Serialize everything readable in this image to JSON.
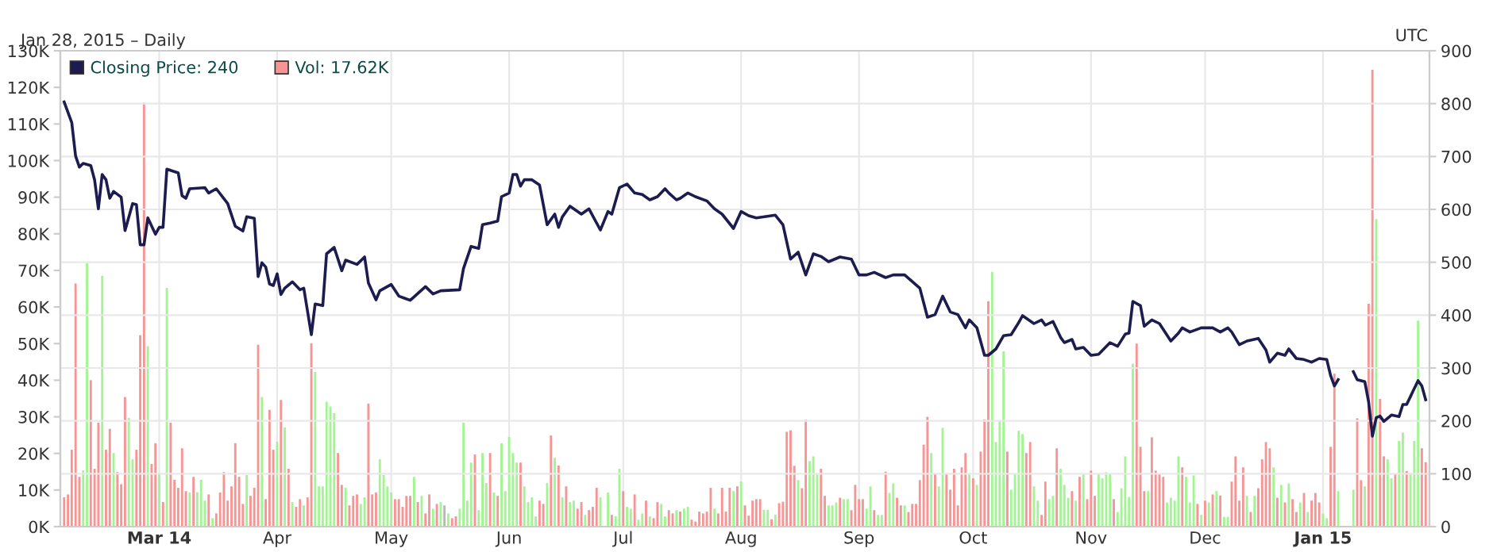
{
  "chart_data": {
    "type": "bar",
    "subtitle": "Jan 28, 2015 – Daily",
    "annotations": [
      "UTC"
    ],
    "x": [
      "2014-02-04",
      "2014-02-05",
      "2014-02-06",
      "2014-02-07",
      "2014-02-08",
      "2014-02-09",
      "2014-02-10",
      "2014-02-11",
      "2014-02-12",
      "2014-02-13",
      "2014-02-14",
      "2014-02-15",
      "2014-02-16",
      "2014-02-17",
      "2014-02-18",
      "2014-02-19",
      "2014-02-20",
      "2014-02-21",
      "2014-02-22",
      "2014-02-23",
      "2014-02-24",
      "2014-02-25",
      "2014-02-26",
      "2014-02-27",
      "2014-02-28",
      "2014-03-01",
      "2014-03-02",
      "2014-03-03",
      "2014-03-04",
      "2014-03-05",
      "2014-03-06",
      "2014-03-07",
      "2014-03-08",
      "2014-03-09",
      "2014-03-10",
      "2014-03-11",
      "2014-03-12",
      "2014-03-13",
      "2014-03-14",
      "2014-03-15",
      "2014-03-16",
      "2014-03-17",
      "2014-03-18",
      "2014-03-19",
      "2014-03-20",
      "2014-03-21",
      "2014-03-22",
      "2014-03-23",
      "2014-03-24",
      "2014-03-25",
      "2014-03-26",
      "2014-03-27",
      "2014-03-28",
      "2014-03-29",
      "2014-03-30",
      "2014-03-31",
      "2014-04-01",
      "2014-04-02",
      "2014-04-03",
      "2014-04-04",
      "2014-04-05",
      "2014-04-06",
      "2014-04-07",
      "2014-04-08",
      "2014-04-09",
      "2014-04-10",
      "2014-04-11",
      "2014-04-12",
      "2014-04-13",
      "2014-04-14",
      "2014-04-15",
      "2014-04-16",
      "2014-04-17",
      "2014-04-18",
      "2014-04-19",
      "2014-04-20",
      "2014-04-21",
      "2014-04-22",
      "2014-04-23",
      "2014-04-24",
      "2014-04-25",
      "2014-04-26",
      "2014-04-27",
      "2014-04-28",
      "2014-04-29",
      "2014-04-30",
      "2014-05-01",
      "2014-05-02",
      "2014-05-03",
      "2014-05-04",
      "2014-05-05",
      "2014-05-06",
      "2014-05-07",
      "2014-05-08",
      "2014-05-09",
      "2014-05-10",
      "2014-05-11",
      "2014-05-12",
      "2014-05-13",
      "2014-05-14",
      "2014-05-15",
      "2014-05-16",
      "2014-05-17",
      "2014-05-18",
      "2014-05-19",
      "2014-05-20",
      "2014-05-21",
      "2014-05-22",
      "2014-05-23",
      "2014-05-24",
      "2014-05-25",
      "2014-05-26",
      "2014-05-27",
      "2014-05-28",
      "2014-05-29",
      "2014-05-30",
      "2014-05-31",
      "2014-06-01",
      "2014-06-02",
      "2014-06-03",
      "2014-06-04",
      "2014-06-05",
      "2014-06-06",
      "2014-06-07",
      "2014-06-08",
      "2014-06-09",
      "2014-06-10",
      "2014-06-11",
      "2014-06-12",
      "2014-06-13",
      "2014-06-14",
      "2014-06-15",
      "2014-06-16",
      "2014-06-17",
      "2014-06-18",
      "2014-06-19",
      "2014-06-20",
      "2014-06-21",
      "2014-06-22",
      "2014-06-23",
      "2014-06-24",
      "2014-06-25",
      "2014-06-26",
      "2014-06-27",
      "2014-06-28",
      "2014-06-29",
      "2014-06-30",
      "2014-07-01",
      "2014-07-02",
      "2014-07-03",
      "2014-07-04",
      "2014-07-05",
      "2014-07-06",
      "2014-07-07",
      "2014-07-08",
      "2014-07-09",
      "2014-07-10",
      "2014-07-11",
      "2014-07-12",
      "2014-07-13",
      "2014-07-14",
      "2014-07-15",
      "2014-07-16",
      "2014-07-17",
      "2014-07-18",
      "2014-07-19",
      "2014-07-20",
      "2014-07-21",
      "2014-07-22",
      "2014-07-23",
      "2014-07-24",
      "2014-07-25",
      "2014-07-26",
      "2014-07-27",
      "2014-07-28",
      "2014-07-29",
      "2014-07-30",
      "2014-07-31",
      "2014-08-01",
      "2014-08-02",
      "2014-08-03",
      "2014-08-04",
      "2014-08-05",
      "2014-08-06",
      "2014-08-07",
      "2014-08-08",
      "2014-08-09",
      "2014-08-10",
      "2014-08-11",
      "2014-08-12",
      "2014-08-13",
      "2014-08-14",
      "2014-08-15",
      "2014-08-16",
      "2014-08-17",
      "2014-08-18",
      "2014-08-19",
      "2014-08-20",
      "2014-08-21",
      "2014-08-22",
      "2014-08-23",
      "2014-08-24",
      "2014-08-25",
      "2014-08-26",
      "2014-08-27",
      "2014-08-28",
      "2014-08-29",
      "2014-08-30",
      "2014-08-31",
      "2014-09-01",
      "2014-09-02",
      "2014-09-03",
      "2014-09-04",
      "2014-09-05",
      "2014-09-06",
      "2014-09-07",
      "2014-09-08",
      "2014-09-09",
      "2014-09-10",
      "2014-09-11",
      "2014-09-12",
      "2014-09-13",
      "2014-09-14",
      "2014-09-15",
      "2014-09-16",
      "2014-09-17",
      "2014-09-18",
      "2014-09-19",
      "2014-09-20",
      "2014-09-21",
      "2014-09-22",
      "2014-09-23",
      "2014-09-24",
      "2014-09-25",
      "2014-09-26",
      "2014-09-27",
      "2014-09-28",
      "2014-09-29",
      "2014-09-30",
      "2014-10-01",
      "2014-10-02",
      "2014-10-03",
      "2014-10-04",
      "2014-10-05",
      "2014-10-06",
      "2014-10-07",
      "2014-10-08",
      "2014-10-09",
      "2014-10-10",
      "2014-10-11",
      "2014-10-12",
      "2014-10-13",
      "2014-10-14",
      "2014-10-15",
      "2014-10-16",
      "2014-10-17",
      "2014-10-18",
      "2014-10-19",
      "2014-10-20",
      "2014-10-21",
      "2014-10-22",
      "2014-10-23",
      "2014-10-24",
      "2014-10-25",
      "2014-10-26",
      "2014-10-27",
      "2014-10-28",
      "2014-10-29",
      "2014-10-30",
      "2014-10-31",
      "2014-11-01",
      "2014-11-02",
      "2014-11-03",
      "2014-11-04",
      "2014-11-05",
      "2014-11-06",
      "2014-11-07",
      "2014-11-08",
      "2014-11-09",
      "2014-11-10",
      "2014-11-11",
      "2014-11-12",
      "2014-11-13",
      "2014-11-14",
      "2014-11-15",
      "2014-11-16",
      "2014-11-17",
      "2014-11-18",
      "2014-11-19",
      "2014-11-20",
      "2014-11-21",
      "2014-11-22",
      "2014-11-23",
      "2014-11-24",
      "2014-11-25",
      "2014-11-26",
      "2014-11-27",
      "2014-11-28",
      "2014-11-29",
      "2014-11-30",
      "2014-12-01",
      "2014-12-02",
      "2014-12-03",
      "2014-12-04",
      "2014-12-05",
      "2014-12-06",
      "2014-12-07",
      "2014-12-08",
      "2014-12-09",
      "2014-12-10",
      "2014-12-11",
      "2014-12-12",
      "2014-12-13",
      "2014-12-14",
      "2014-12-15",
      "2014-12-16",
      "2014-12-17",
      "2014-12-18",
      "2014-12-19",
      "2014-12-20",
      "2014-12-21",
      "2014-12-22",
      "2014-12-23",
      "2014-12-24",
      "2014-12-25",
      "2014-12-26",
      "2014-12-27",
      "2014-12-28",
      "2014-12-29",
      "2014-12-30",
      "2014-12-31",
      "2015-01-01",
      "2015-01-02",
      "2015-01-03",
      "2015-01-04",
      "2015-01-05",
      "2015-01-06",
      "2015-01-07",
      "2015-01-08",
      "2015-01-09",
      "2015-01-10",
      "2015-01-11",
      "2015-01-12",
      "2015-01-13",
      "2015-01-14",
      "2015-01-15",
      "2015-01-16",
      "2015-01-17",
      "2015-01-18",
      "2015-01-19",
      "2015-01-20",
      "2015-01-21",
      "2015-01-22",
      "2015-01-23",
      "2015-01-24",
      "2015-01-25",
      "2015-01-26",
      "2015-01-27",
      "2015-01-28"
    ],
    "series": [
      {
        "name": "Vol: 17.62K",
        "color": "#f79494",
        "values": [
          8,
          8.8,
          21,
          66.4,
          13.6,
          15.4,
          72,
          40,
          15.8,
          28.4,
          68.5,
          21,
          26.7,
          20.1,
          14.9,
          11.6,
          35.4,
          29.7,
          18.4,
          21,
          52.3,
          115.8,
          49.3,
          17.1,
          22.8,
          14.4,
          6.7,
          65.2,
          28.4,
          12.8,
          10.6,
          21.4,
          9.7,
          9.3,
          13.6,
          9.4,
          12.8,
          7.1,
          8.8,
          2.3,
          3.6,
          9.3,
          14.9,
          7.1,
          11,
          22.8,
          13.6,
          6.2,
          14.1,
          8.4,
          10.6,
          49.7,
          35.4,
          7.5,
          31.9,
          21,
          23.2,
          34.6,
          27.1,
          15.8,
          6.7,
          5.4,
          7.5,
          5.8,
          8,
          50.1,
          42.3,
          11,
          11,
          34.1,
          32.8,
          31,
          20.1,
          11.4,
          10.6,
          5.8,
          8.4,
          8.8,
          6.2,
          8,
          33.6,
          8.8,
          9.3,
          18.4,
          14.1,
          11,
          9.3,
          7.5,
          7.5,
          5.4,
          8.4,
          8.4,
          13.6,
          6.7,
          8.4,
          3.6,
          8.8,
          4.9,
          6.2,
          6.7,
          5.8,
          3.6,
          2.3,
          2.8,
          4.9,
          28.4,
          7.1,
          17.5,
          19.7,
          4.5,
          20.1,
          11.9,
          20.1,
          9.3,
          8.4,
          22.8,
          9.7,
          24.5,
          20.1,
          17.5,
          17.5,
          11,
          6.7,
          8,
          2.8,
          7.1,
          6.2,
          11.9,
          24.9,
          18.8,
          16.7,
          8,
          11,
          6.7,
          7.1,
          4.9,
          6.7,
          3.2,
          4.5,
          5.4,
          10.6,
          8,
          null,
          9.3,
          3.2,
          2.8,
          15.8,
          9.7,
          5.4,
          4.9,
          8.8,
          1.9,
          3.6,
          7.1,
          2.8,
          2.3,
          6.7,
          6.2,
          2.8,
          4.5,
          3.6,
          4.5,
          4.1,
          4.9,
          5.4,
          1.9,
          1.4,
          4.1,
          3.6,
          4.1,
          10.6,
          4.9,
          3.6,
          10.6,
          4.1,
          10.6,
          9.7,
          11,
          12.3,
          5.8,
          3,
          7.1,
          7.5,
          7.5,
          4.6,
          4.6,
          2,
          3.3,
          6.4,
          6.8,
          25.9,
          26.3,
          16.6,
          12.7,
          10.5,
          29.2,
          17.9,
          19.2,
          14.5,
          15.8,
          8.4,
          5.8,
          5.8,
          6.6,
          7.9,
          7.5,
          7.5,
          4.5,
          11.4,
          7.5,
          7.5,
          4.9,
          11,
          4.5,
          3.2,
          3.2,
          15,
          9.2,
          11.8,
          7.9,
          5.8,
          5.8,
          4,
          6.2,
          6.2,
          12.7,
          22.4,
          30,
          20.1,
          14.5,
          11,
          27,
          14.5,
          10.1,
          15.8,
          5.8,
          16.2,
          20.1,
          14.5,
          13.2,
          11.4,
          20.5,
          29.3,
          61.6,
          69.6,
          23.1,
          28.8,
          47.9,
          20.5,
          10.1,
          14.5,
          26.2,
          25.3,
          20.1,
          23.1,
          11,
          7.1,
          3.2,
          12.3,
          7.5,
          8.4,
          21.4,
          15.8,
          11.4,
          7.9,
          9.7,
          7.1,
          13.6,
          14.5,
          7.5,
          15.3,
          8.4,
          14.5,
          13.2,
          14.9,
          14.5,
          7.5,
          4,
          10.5,
          19.2,
          8.1,
          44.5,
          50,
          21.8,
          9.7,
          9.7,
          24.4,
          15.3,
          14.5,
          13.6,
          6.6,
          7.9,
          7.1,
          19.2,
          16.2,
          13.6,
          6.6,
          14,
          6.2,
          3.2,
          7.1,
          6.6,
          8.8,
          9.7,
          8.5,
          2.7,
          2.7,
          12.3,
          19.2,
          7.1,
          16.2,
          8.4,
          4,
          8.4,
          10.5,
          18.4,
          23.1,
          21.4,
          16.2,
          7.9,
          11.4,
          6.6,
          11.8,
          7.5,
          4,
          6.6,
          9.2,
          4,
          7.1,
          9.2,
          6.6,
          3.6,
          2.3,
          21.8,
          41.8,
          9.7,
          null,
          null,
          null,
          10.1,
          29.6,
          12.7,
          11,
          60.9,
          124.8,
          84,
          34.9,
          19.2,
          18.4,
          13.2,
          14.5,
          23.4,
          25.7,
          15.2,
          14.3,
          23.4,
          56.3,
          21.4,
          17.6
        ],
        "colors": [
          "#f79494",
          "#f79494",
          "#f79494",
          "#f79494",
          "#f79494",
          "#a3f593",
          "#a3f593",
          "#f79494",
          "#f79494",
          "#f79494",
          "#a3f593",
          "#f79494",
          "#f79494",
          "#a3f593",
          "#f79494",
          "#f79494",
          "#f79494",
          "#a3f593",
          "#a3f593",
          "#f79494",
          "#f79494",
          "#f79494",
          "#a3f593",
          "#f79494",
          "#f79494",
          "#a3f593",
          "#f79494",
          "#a3f593",
          "#f79494",
          "#f79494",
          "#f79494",
          "#f79494",
          "#f79494",
          "#a3f593",
          "#f79494",
          "#a3f593",
          "#a3f593",
          "#a3f593",
          "#f79494",
          "#a3f593",
          "#f79494",
          "#f79494",
          "#f79494",
          "#f79494",
          "#f79494",
          "#f79494",
          "#f79494",
          "#f79494",
          "#a3f593",
          "#f79494",
          "#f79494",
          "#f79494",
          "#a3f593",
          "#f79494",
          "#f79494",
          "#f79494",
          "#a3f593",
          "#f79494",
          "#a3f593",
          "#f79494",
          "#a3f593",
          "#f79494",
          "#f79494",
          "#a3f593",
          "#f79494",
          "#f79494",
          "#a3f593",
          "#a3f593",
          "#a3f593",
          "#a3f593",
          "#a3f593",
          "#a3f593",
          "#f79494",
          "#f79494",
          "#a3f593",
          "#f79494",
          "#f79494",
          "#f79494",
          "#a3f593",
          "#a3f593",
          "#f79494",
          "#f79494",
          "#f79494",
          "#a3f593",
          "#a3f593",
          "#a3f593",
          "#a3f593",
          "#f79494",
          "#f79494",
          "#f79494",
          "#f79494",
          "#f79494",
          "#a3f593",
          "#f79494",
          "#a3f593",
          "#f79494",
          "#f79494",
          "#a3f593",
          "#f79494",
          "#a3f593",
          "#b7b7b7",
          "#a3f593",
          "#f79494",
          "#f79494",
          "#a3f593",
          "#a3f593",
          "#a3f593",
          "#a3f593",
          "#f79494",
          "#a3f593",
          "#a3f593",
          "#a3f593",
          "#f79494",
          "#a3f593",
          "#f79494",
          "#a3f593",
          "#a3f593",
          "#a3f593",
          "#a3f593",
          "#a3f593",
          "#f79494",
          "#a3f593",
          "#a3f593",
          "#a3f593",
          "#a3f593",
          "#f79494",
          "#f79494",
          "#a3f593",
          "#f79494",
          "#a3f593",
          "#f79494",
          "#a3f593",
          "#f79494",
          "#a3f593",
          "#a3f593",
          "#f79494",
          "#f79494",
          "#a3f593",
          "#f79494",
          "#f79494",
          "#f79494",
          "#a3f593",
          "#f79494",
          "#a3f593",
          "#f79494",
          "#a3f593",
          "#a3f593",
          "#f79494",
          "#a3f593",
          "#a3f593",
          "#f79494",
          "#a3f593",
          "#a3f593",
          "#f79494",
          "#a3f593",
          "#f79494",
          "#f79494",
          "#a3f593",
          "#a3f593",
          "#f79494",
          "#f79494",
          "#a3f593",
          "#f79494",
          "#a3f593",
          "#a3f593",
          "#f79494",
          "#f79494",
          "#f79494",
          "#f79494",
          "#f79494",
          "#f79494",
          "#a3f593",
          "#f79494",
          "#f79494",
          "#f79494",
          "#f79494",
          "#a3f593",
          "#f79494",
          "#a3f593",
          "#f79494",
          "#f79494",
          "#f79494",
          "#f79494",
          "#f79494",
          "#a3f593",
          "#a3f593",
          "#f79494",
          "#a3f593",
          "#f79494",
          "#f79494",
          "#f79494",
          "#f79494",
          "#f79494",
          "#a3f593",
          "#f79494",
          "#f79494",
          "#a3f593",
          "#a3f593",
          "#a3f593",
          "#f79494",
          "#f79494",
          "#a3f593",
          "#a3f593",
          "#a3f593",
          "#f79494",
          "#a3f593",
          "#a3f593",
          "#f79494",
          "#f79494",
          "#f79494",
          "#f79494",
          "#a3f593",
          "#a3f593",
          "#f79494",
          "#a3f593",
          "#a3f593",
          "#f79494",
          "#a3f593",
          "#a3f593",
          "#f79494",
          "#f79494",
          "#a3f593",
          "#f79494",
          "#f79494",
          "#f79494",
          "#f79494",
          "#f79494",
          "#f79494",
          "#a3f593",
          "#f79494",
          "#a3f593",
          "#a3f593",
          "#f79494",
          "#f79494",
          "#f79494",
          "#f79494",
          "#f79494",
          "#f79494",
          "#a3f593",
          "#f79494",
          "#a3f593",
          "#f79494",
          "#f79494",
          "#f79494",
          "#a3f593",
          "#a3f593",
          "#a3f593",
          "#a3f593",
          "#f79494",
          "#a3f593",
          "#a3f593",
          "#a3f593",
          "#a3f593",
          "#f79494",
          "#f79494",
          "#a3f593",
          "#a3f593",
          "#f79494",
          "#f79494",
          "#a3f593",
          "#a3f593",
          "#f79494",
          "#a3f593",
          "#a3f593",
          "#a3f593",
          "#f79494",
          "#a3f593",
          "#f79494",
          "#a3f593",
          "#f79494",
          "#f79494",
          "#f79494",
          "#a3f593",
          "#a3f593",
          "#a3f593",
          "#a3f593",
          "#f79494",
          "#a3f593",
          "#a3f593",
          "#a3f593",
          "#a3f593",
          "#a3f593",
          "#f79494",
          "#f79494",
          "#f79494",
          "#a3f593",
          "#f79494",
          "#f79494",
          "#f79494",
          "#f79494",
          "#a3f593",
          "#a3f593",
          "#a3f593",
          "#a3f593",
          "#f79494",
          "#a3f593",
          "#a3f593",
          "#a3f593",
          "#f79494",
          "#a3f593",
          "#f79494",
          "#a3f593",
          "#f79494",
          "#a3f593",
          "#f79494",
          "#a3f593",
          "#a3f593",
          "#f79494",
          "#f79494",
          "#f79494",
          "#f79494",
          "#a3f593",
          "#f79494",
          "#a3f593",
          "#f79494",
          "#f79494",
          "#f79494",
          "#f79494",
          "#a3f593",
          "#f79494",
          "#a3f593",
          "#f79494",
          "#a3f593",
          "#f79494",
          "#f79494",
          "#a3f593",
          "#f79494",
          "#a3f593",
          "#f79494",
          "#f79494",
          "#f79494",
          "#a3f593",
          "#a3f593",
          "#f79494",
          "#f79494",
          "#a3f593",
          "#f79494",
          "#f79494",
          "#f79494",
          "#a3f593",
          "#f79494",
          "#f79494",
          "#a3f593",
          "#f79494",
          "#f79494",
          "#a3f593",
          "#f79494",
          "#f79494",
          "#a3f593",
          "#a3f593",
          "#f79494",
          "#a3f593",
          "#a3f593",
          "#f79494",
          "#a3f593",
          "#a3f593",
          "#a3f593",
          "#f79494",
          "#f79494"
        ]
      },
      {
        "name": "Closing Price: 240",
        "type": "line",
        "axis": "y2",
        "color": "#1c1c4f",
        "x": [
          "2014-02-04",
          "2014-02-06",
          "2014-02-07",
          "2014-02-08",
          "2014-02-09",
          "2014-02-11",
          "2014-02-12",
          "2014-02-13",
          "2014-02-14",
          "2014-02-15",
          "2014-02-16",
          "2014-02-17",
          "2014-02-19",
          "2014-02-20",
          "2014-02-22",
          "2014-02-23",
          "2014-02-24",
          "2014-02-25",
          "2014-02-26",
          "2014-02-28",
          "2014-03-01",
          "2014-03-02",
          "2014-03-03",
          "2014-03-06",
          "2014-03-07",
          "2014-03-08",
          "2014-03-09",
          "2014-03-13",
          "2014-03-14",
          "2014-03-16",
          "2014-03-19",
          "2014-03-21",
          "2014-03-23",
          "2014-03-24",
          "2014-03-26",
          "2014-03-27",
          "2014-03-28",
          "2014-03-29",
          "2014-03-30",
          "2014-03-31",
          "2014-04-01",
          "2014-04-02",
          "2014-04-03",
          "2014-04-05",
          "2014-04-07",
          "2014-04-08",
          "2014-04-10",
          "2014-04-11",
          "2014-04-13",
          "2014-04-14",
          "2014-04-16",
          "2014-04-18",
          "2014-04-19",
          "2014-04-22",
          "2014-04-24",
          "2014-04-25",
          "2014-04-27",
          "2014-04-28",
          "2014-05-01",
          "2014-05-03",
          "2014-05-06",
          "2014-05-10",
          "2014-05-12",
          "2014-05-14",
          "2014-05-19",
          "2014-05-20",
          "2014-05-22",
          "2014-05-24",
          "2014-05-25",
          "2014-05-27",
          "2014-05-29",
          "2014-05-30",
          "2014-06-01",
          "2014-06-02",
          "2014-06-03",
          "2014-06-04",
          "2014-06-05",
          "2014-06-07",
          "2014-06-09",
          "2014-06-11",
          "2014-06-13",
          "2014-06-14",
          "2014-06-15",
          "2014-06-17",
          "2014-06-20",
          "2014-06-22",
          "2014-06-25",
          "2014-06-27",
          "2014-06-28",
          "2014-06-30",
          "2014-07-02",
          "2014-07-04",
          "2014-07-06",
          "2014-07-08",
          "2014-07-10",
          "2014-07-12",
          "2014-07-13",
          "2014-07-15",
          "2014-07-16",
          "2014-07-18",
          "2014-07-20",
          "2014-07-23",
          "2014-07-25",
          "2014-07-27",
          "2014-07-30",
          "2014-08-01",
          "2014-08-03",
          "2014-08-05",
          "2014-08-10",
          "2014-08-12",
          "2014-08-14",
          "2014-08-16",
          "2014-08-18",
          "2014-08-20",
          "2014-08-22",
          "2014-08-24",
          "2014-08-27",
          "2014-08-30",
          "2014-09-01",
          "2014-09-03",
          "2014-09-05",
          "2014-09-08",
          "2014-09-10",
          "2014-09-13",
          "2014-09-17",
          "2014-09-19",
          "2014-09-21",
          "2014-09-23",
          "2014-09-25",
          "2014-09-27",
          "2014-09-29",
          "2014-09-30",
          "2014-10-02",
          "2014-10-04",
          "2014-10-05",
          "2014-10-07",
          "2014-10-09",
          "2014-10-11",
          "2014-10-13",
          "2014-10-14",
          "2014-10-17",
          "2014-10-19",
          "2014-10-20",
          "2014-10-22",
          "2014-10-24",
          "2014-10-25",
          "2014-10-27",
          "2014-10-28",
          "2014-10-30",
          "2014-11-01",
          "2014-11-03",
          "2014-11-06",
          "2014-11-08",
          "2014-11-10",
          "2014-11-11",
          "2014-11-12",
          "2014-11-14",
          "2014-11-15",
          "2014-11-17",
          "2014-11-19",
          "2014-11-22",
          "2014-11-24",
          "2014-11-25",
          "2014-11-27",
          "2014-11-30",
          "2014-12-03",
          "2014-12-05",
          "2014-12-07",
          "2014-12-08",
          "2014-12-10",
          "2014-12-12",
          "2014-12-15",
          "2014-12-17",
          "2014-12-18",
          "2014-12-20",
          "2014-12-22",
          "2014-12-23",
          "2014-12-25",
          "2014-12-27",
          "2014-12-29",
          "2014-12-31",
          "2015-01-02",
          "2015-01-03",
          "2015-01-04",
          "2015-01-05",
          "2015-01-07",
          "2015-01-09",
          "2015-01-10",
          "2015-01-12",
          "2015-01-13",
          "2015-01-14",
          "2015-01-15",
          "2015-01-16",
          "2015-01-17",
          "2015-01-19",
          "2015-01-21",
          "2015-01-22",
          "2015-01-23",
          "2015-01-26",
          "2015-01-27",
          "2015-01-28"
        ],
        "values": [
          803,
          764,
          701,
          680,
          687,
          683,
          656,
          601,
          666,
          656,
          621,
          634,
          623,
          560,
          611,
          609,
          533,
          533,
          584,
          553,
          566,
          566,
          676,
          669,
          626,
          621,
          639,
          641,
          631,
          639,
          611,
          568,
          559,
          586,
          583,
          473,
          499,
          491,
          459,
          456,
          478,
          439,
          451,
          463,
          448,
          451,
          363,
          421,
          418,
          516,
          528,
          484,
          504,
          496,
          510,
          461,
          429,
          446,
          458,
          436,
          428,
          454,
          440,
          446,
          448,
          488,
          530,
          526,
          571,
          574,
          578,
          624,
          631,
          666,
          666,
          644,
          656,
          656,
          646,
          571,
          591,
          566,
          586,
          606,
          591,
          601,
          561,
          596,
          591,
          641,
          648,
          631,
          628,
          618,
          624,
          639,
          631,
          618,
          621,
          631,
          624,
          616,
          601,
          591,
          564,
          596,
          588,
          584,
          589,
          571,
          506,
          519,
          476,
          516,
          511,
          501,
          510,
          506,
          476,
          476,
          481,
          471,
          476,
          476,
          451,
          396,
          401,
          436,
          406,
          401,
          376,
          391,
          376,
          324,
          324,
          336,
          361,
          363,
          386,
          399,
          384,
          391,
          381,
          388,
          358,
          348,
          354,
          336,
          339,
          324,
          326,
          348,
          341,
          364,
          366,
          426,
          418,
          379,
          391,
          384,
          351,
          366,
          376,
          368,
          376,
          376,
          368,
          376,
          368,
          344,
          351,
          356,
          334,
          311,
          328,
          324,
          336,
          318,
          316,
          311,
          318,
          316,
          286,
          266,
          278,
          null,
          293,
          278,
          274,
          236,
          171,
          206,
          209,
          199,
          211,
          208,
          231,
          231,
          276,
          266,
          240
        ]
      }
    ],
    "xlim": [
      "2014-02-03",
      "2015-01-29"
    ],
    "xticks": [
      {
        "value": "2014-03-01",
        "label": "Mar 14"
      },
      {
        "value": "2014-04-01",
        "label": "Apr"
      },
      {
        "value": "2014-05-01",
        "label": "May"
      },
      {
        "value": "2014-06-01",
        "label": "Jun"
      },
      {
        "value": "2014-07-01",
        "label": "Jul"
      },
      {
        "value": "2014-08-01",
        "label": "Aug"
      },
      {
        "value": "2014-09-01",
        "label": "Sep"
      },
      {
        "value": "2014-10-01",
        "label": "Oct"
      },
      {
        "value": "2014-11-01",
        "label": "Nov"
      },
      {
        "value": "2014-12-01",
        "label": "Dec"
      },
      {
        "value": "2015-01-01",
        "label": "Jan 15"
      }
    ],
    "ylim": [
      0,
      130
    ],
    "yticks": [
      {
        "value": 0,
        "label": "0K"
      },
      {
        "value": 10,
        "label": "10K"
      },
      {
        "value": 20,
        "label": "20K"
      },
      {
        "value": 30,
        "label": "30K"
      },
      {
        "value": 40,
        "label": "40K"
      },
      {
        "value": 50,
        "label": "50K"
      },
      {
        "value": 60,
        "label": "60K"
      },
      {
        "value": 70,
        "label": "70K"
      },
      {
        "value": 80,
        "label": "80K"
      },
      {
        "value": 90,
        "label": "90K"
      },
      {
        "value": 100,
        "label": "100K"
      },
      {
        "value": 110,
        "label": "110K"
      },
      {
        "value": 120,
        "label": "120K"
      },
      {
        "value": 130,
        "label": "130K"
      }
    ],
    "y2lim": [
      0,
      900
    ],
    "y2ticks": [
      0,
      100,
      200,
      300,
      400,
      500,
      600,
      700,
      800,
      900
    ],
    "grid": true,
    "legend": "top left"
  }
}
